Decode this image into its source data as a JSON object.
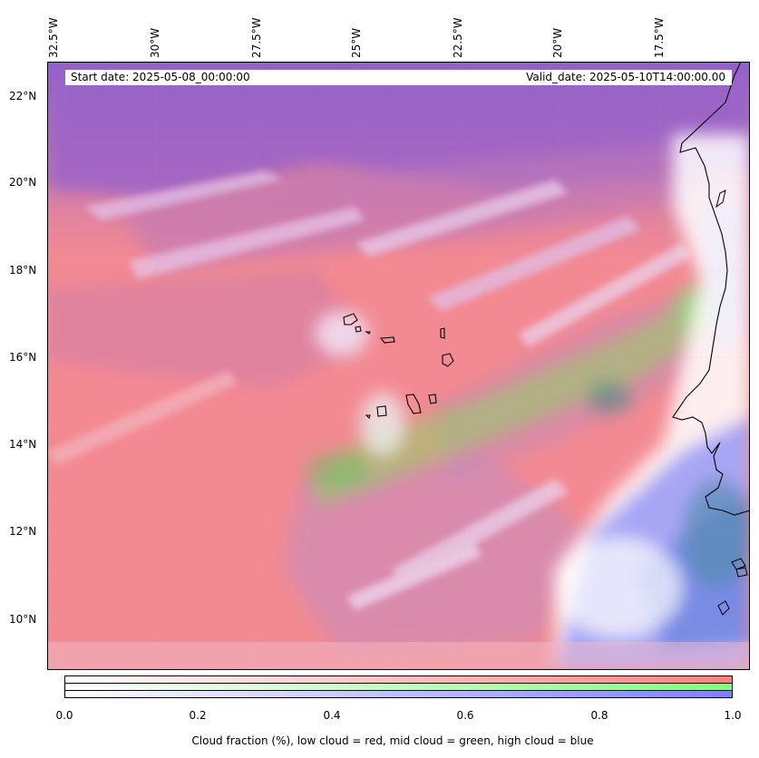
{
  "map": {
    "start_date_label": "Start date: 2025-05-08_00:00:00",
    "valid_date_label": "Valid_date: 2025-05-10T14:00:00.00",
    "longitude_labels": [
      "32.5°W",
      "30°W",
      "27.5°W",
      "25°W",
      "22.5°W",
      "20°W",
      "17.5°W"
    ],
    "latitude_labels": [
      "22°N",
      "20°N",
      "18°N",
      "16°N",
      "14°N",
      "12°N",
      "10°N"
    ],
    "colors": {
      "low_cloud": "#ff7f7f",
      "mid_cloud": "#7fff7f",
      "high_cloud": "#7f7fff",
      "coastline": "#000000"
    }
  },
  "colorbar": {
    "tick_labels": [
      "0.0",
      "0.2",
      "0.4",
      "0.6",
      "0.8",
      "1.0"
    ],
    "caption": "Cloud fraction (%), low cloud = red, mid cloud = green, high cloud = blue"
  }
}
